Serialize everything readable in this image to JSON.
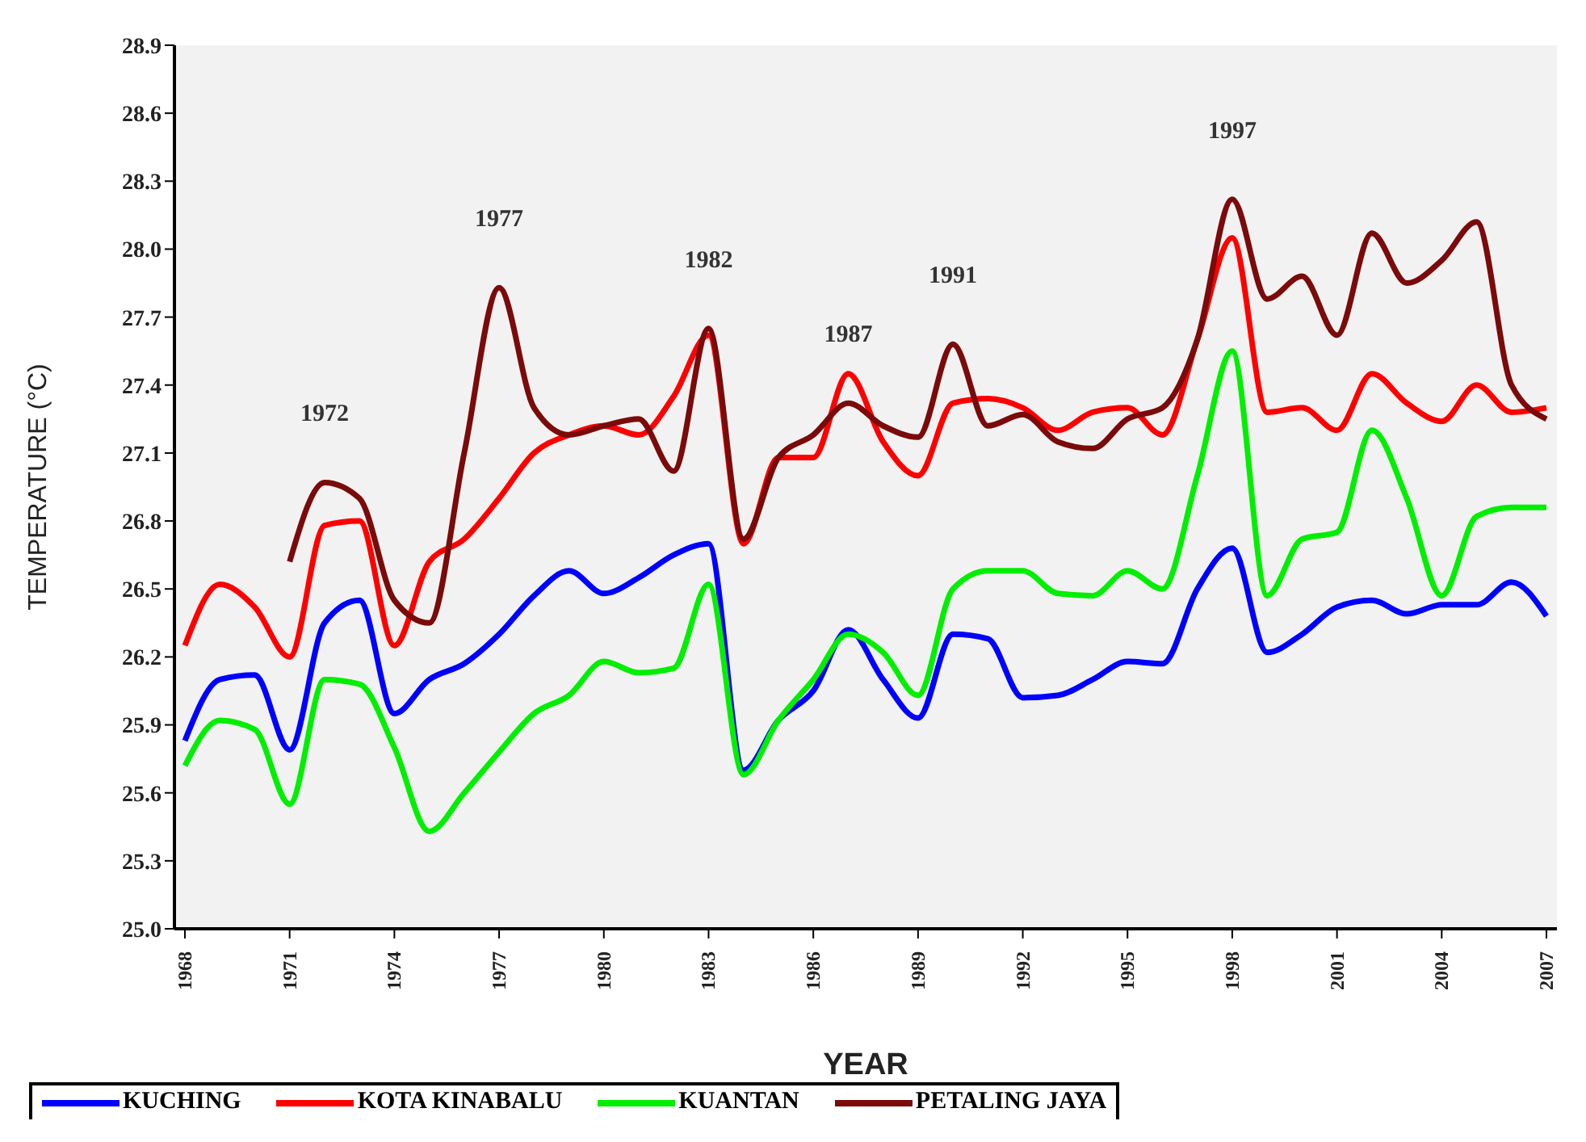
{
  "chart_data": {
    "type": "line",
    "xlabel": "YEAR",
    "ylabel": "TEMPERATURE (°C)",
    "x": [
      1968,
      1969,
      1970,
      1971,
      1972,
      1973,
      1974,
      1975,
      1976,
      1977,
      1978,
      1979,
      1980,
      1981,
      1982,
      1983,
      1984,
      1985,
      1986,
      1987,
      1988,
      1989,
      1990,
      1991,
      1992,
      1993,
      1994,
      1995,
      1996,
      1997,
      1998,
      1999,
      2000,
      2001,
      2002,
      2003,
      2004,
      2005,
      2006,
      2007
    ],
    "series": [
      {
        "name": "KUCHING",
        "color": "#0000ff",
        "values": [
          25.83,
          26.1,
          26.12,
          25.79,
          26.35,
          26.45,
          25.95,
          26.1,
          26.17,
          26.3,
          26.47,
          26.58,
          26.48,
          26.55,
          26.65,
          26.7,
          25.7,
          25.92,
          26.05,
          26.32,
          26.1,
          25.93,
          26.3,
          26.28,
          26.02,
          26.03,
          26.1,
          26.18,
          26.17,
          26.5,
          26.68,
          26.22,
          26.3,
          26.42,
          26.45,
          26.39,
          26.43,
          26.43,
          26.53,
          26.38
        ]
      },
      {
        "name": "KOTA KINABALU",
        "color": "#ff0000",
        "values": [
          26.25,
          26.52,
          26.42,
          26.2,
          26.78,
          26.8,
          26.25,
          26.62,
          26.72,
          26.9,
          27.1,
          27.18,
          27.22,
          27.18,
          27.35,
          27.62,
          26.7,
          27.08,
          27.08,
          27.45,
          27.15,
          27.0,
          27.32,
          27.34,
          27.3,
          27.2,
          27.28,
          27.3,
          27.18,
          27.6,
          28.05,
          27.28,
          27.3,
          27.2,
          27.45,
          27.32,
          27.24,
          27.4,
          27.28,
          27.3
        ]
      },
      {
        "name": "KUANTAN",
        "color": "#00ee00",
        "values": [
          25.72,
          25.92,
          25.88,
          25.55,
          26.1,
          26.08,
          25.8,
          25.43,
          25.6,
          25.78,
          25.95,
          26.03,
          26.18,
          26.13,
          26.15,
          26.52,
          25.68,
          25.92,
          26.1,
          26.3,
          26.22,
          26.03,
          26.5,
          26.58,
          26.58,
          26.48,
          26.47,
          26.58,
          26.5,
          27.0,
          27.55,
          26.47,
          26.72,
          26.75,
          27.2,
          26.9,
          26.47,
          26.82,
          26.86,
          26.86
        ]
      },
      {
        "name": "PETALING JAYA",
        "color": "#7b0a0a",
        "values": [
          null,
          null,
          null,
          26.62,
          26.97,
          26.9,
          26.45,
          26.35,
          27.1,
          27.83,
          27.3,
          27.18,
          27.22,
          27.25,
          27.02,
          27.65,
          26.72,
          27.08,
          27.18,
          27.32,
          27.22,
          27.17,
          27.58,
          27.22,
          27.27,
          27.15,
          27.12,
          27.25,
          27.3,
          27.6,
          28.22,
          27.78,
          27.88,
          27.62,
          28.07,
          27.85,
          27.95,
          28.12,
          27.4,
          27.25
        ]
      }
    ],
    "xlim": [
      1967.7,
      2007.3
    ],
    "xticks": [
      1968,
      1971,
      1974,
      1977,
      1980,
      1983,
      1986,
      1989,
      1992,
      1995,
      1998,
      2001,
      2004,
      2007
    ],
    "ylim": [
      25.0,
      28.9
    ],
    "yticks": [
      {
        "value": 25.0,
        "label": "25.0"
      },
      25.3,
      25.6,
      25.9,
      26.2,
      26.5,
      26.8,
      27.1,
      27.4,
      27.7,
      {
        "value": 28.0,
        "label": "28.0"
      },
      28.3,
      28.6,
      28.9
    ],
    "annotations": [
      {
        "text": "1972",
        "x": 1972,
        "y": 26.97
      },
      {
        "text": "1977",
        "x": 1977,
        "y": 27.83
      },
      {
        "text": "1982",
        "x": 1983,
        "y": 27.65
      },
      {
        "text": "1987",
        "x": 1987,
        "y": 27.32
      },
      {
        "text": "1991",
        "x": 1990,
        "y": 27.58
      },
      {
        "text": "1997",
        "x": 1998,
        "y": 28.22
      }
    ],
    "grid": false,
    "legend": "bottom",
    "marker": "none",
    "line_style": "solid"
  }
}
